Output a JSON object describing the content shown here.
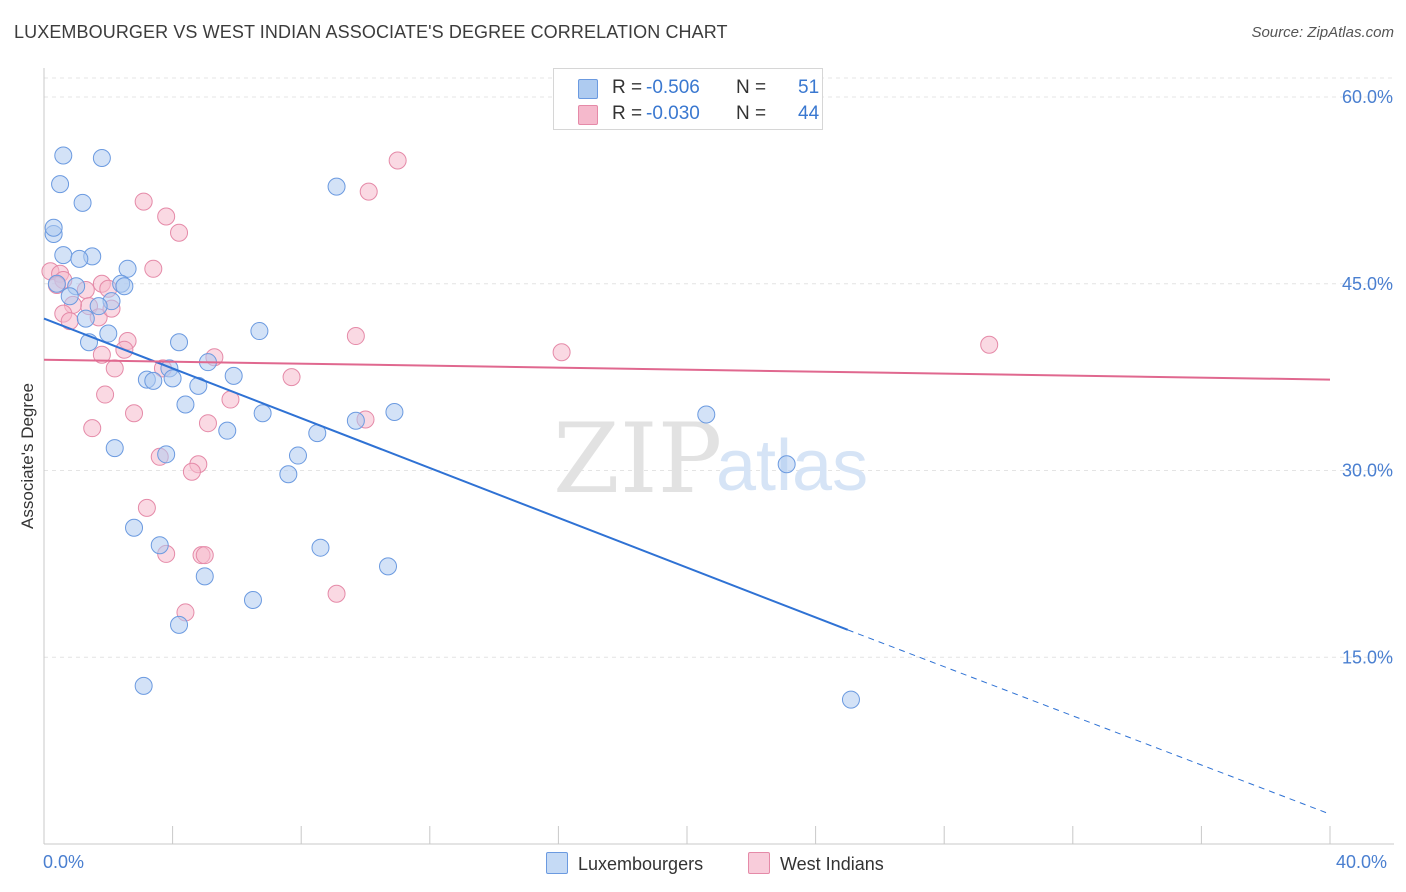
{
  "title": "LUXEMBOURGER VS WEST INDIAN ASSOCIATE'S DEGREE CORRELATION CHART",
  "source": "Source: ZipAtlas.com",
  "colors": {
    "blue_fill": "#aecbf0",
    "blue_stroke": "#6b9ae0",
    "blue_line": "#2f72d4",
    "pink_fill": "#f5b9cc",
    "pink_stroke": "#e58aa8",
    "pink_line": "#e0688f",
    "axis_text": "#4a7fd0",
    "grid": "#e4e4e4"
  },
  "legend": {
    "series1": {
      "r_label": "R =",
      "r_value": "-0.506",
      "n_label": "N =",
      "n_value": "51"
    },
    "series2": {
      "r_label": "R =",
      "r_value": "-0.030",
      "n_label": "N =",
      "n_value": "44"
    }
  },
  "bottom_legend": [
    "Luxembourgers",
    "West Indians"
  ],
  "x_axis_labels": {
    "min": "0.0%",
    "max": "40.0%"
  },
  "chart_data": {
    "type": "scatter",
    "title": "LUXEMBOURGER VS WEST INDIAN ASSOCIATE'S DEGREE CORRELATION CHART",
    "xlabel": "",
    "ylabel": "Associate's Degree",
    "xlim": [
      0,
      40
    ],
    "ylim": [
      0,
      62
    ],
    "y_ticks": [
      15,
      30,
      45,
      60
    ],
    "y_tick_labels": [
      "15.0%",
      "30.0%",
      "45.0%",
      "60.0%"
    ],
    "watermark": {
      "zip": "ZIP",
      "atlas": "atlas"
    },
    "series": [
      {
        "name": "Luxembourgers",
        "color": "#aecbf0",
        "points": [
          [
            0.3,
            49.0
          ],
          [
            0.5,
            53.0
          ],
          [
            0.3,
            49.5
          ],
          [
            0.6,
            55.3
          ],
          [
            1.8,
            55.1
          ],
          [
            1.2,
            51.5
          ],
          [
            0.6,
            47.3
          ],
          [
            1.5,
            47.2
          ],
          [
            2.6,
            46.2
          ],
          [
            2.4,
            45.0
          ],
          [
            2.5,
            44.8
          ],
          [
            1.0,
            44.8
          ],
          [
            0.8,
            44.0
          ],
          [
            2.1,
            43.6
          ],
          [
            1.7,
            43.2
          ],
          [
            1.3,
            42.2
          ],
          [
            2.0,
            41.0
          ],
          [
            6.7,
            41.2
          ],
          [
            1.4,
            40.3
          ],
          [
            4.2,
            40.3
          ],
          [
            5.1,
            38.7
          ],
          [
            3.9,
            38.2
          ],
          [
            5.9,
            37.6
          ],
          [
            3.2,
            37.3
          ],
          [
            3.4,
            37.2
          ],
          [
            4.0,
            37.4
          ],
          [
            4.8,
            36.8
          ],
          [
            4.4,
            35.3
          ],
          [
            6.8,
            34.6
          ],
          [
            10.9,
            34.7
          ],
          [
            9.7,
            34.0
          ],
          [
            5.7,
            33.2
          ],
          [
            8.5,
            33.0
          ],
          [
            2.2,
            31.8
          ],
          [
            3.8,
            31.3
          ],
          [
            7.9,
            31.2
          ],
          [
            7.6,
            29.7
          ],
          [
            2.8,
            25.4
          ],
          [
            3.6,
            24.0
          ],
          [
            8.6,
            23.8
          ],
          [
            10.7,
            22.3
          ],
          [
            5.0,
            21.5
          ],
          [
            6.5,
            19.6
          ],
          [
            4.2,
            17.6
          ],
          [
            3.1,
            12.7
          ],
          [
            25.1,
            11.6
          ],
          [
            20.6,
            34.5
          ],
          [
            23.1,
            30.5
          ],
          [
            9.1,
            52.8
          ],
          [
            1.1,
            47.0
          ],
          [
            0.4,
            45.0
          ]
        ]
      },
      {
        "name": "West Indians",
        "color": "#f5b9cc",
        "points": [
          [
            0.2,
            46.0
          ],
          [
            0.5,
            45.8
          ],
          [
            0.6,
            45.3
          ],
          [
            0.4,
            44.9
          ],
          [
            1.3,
            44.5
          ],
          [
            1.8,
            45.0
          ],
          [
            2.0,
            44.6
          ],
          [
            1.4,
            43.2
          ],
          [
            0.9,
            43.3
          ],
          [
            0.6,
            42.6
          ],
          [
            0.8,
            42.0
          ],
          [
            1.7,
            42.3
          ],
          [
            2.1,
            43.0
          ],
          [
            3.4,
            46.2
          ],
          [
            3.8,
            50.4
          ],
          [
            4.2,
            49.1
          ],
          [
            3.1,
            51.6
          ],
          [
            11.0,
            54.9
          ],
          [
            10.1,
            52.4
          ],
          [
            2.6,
            40.4
          ],
          [
            1.8,
            39.3
          ],
          [
            2.5,
            39.7
          ],
          [
            2.2,
            38.2
          ],
          [
            3.7,
            38.2
          ],
          [
            5.3,
            39.1
          ],
          [
            7.7,
            37.5
          ],
          [
            9.7,
            40.8
          ],
          [
            16.1,
            39.5
          ],
          [
            1.9,
            36.1
          ],
          [
            5.8,
            35.7
          ],
          [
            2.8,
            34.6
          ],
          [
            5.1,
            33.8
          ],
          [
            10.0,
            34.1
          ],
          [
            1.5,
            33.4
          ],
          [
            3.6,
            31.1
          ],
          [
            4.8,
            30.5
          ],
          [
            4.6,
            29.9
          ],
          [
            3.2,
            27.0
          ],
          [
            3.8,
            23.3
          ],
          [
            4.9,
            23.2
          ],
          [
            5.0,
            23.2
          ],
          [
            9.1,
            20.1
          ],
          [
            4.4,
            18.6
          ],
          [
            29.4,
            40.1
          ]
        ]
      }
    ],
    "trend_lines": [
      {
        "name": "Luxembourgers",
        "x_start": 0,
        "y_start": 42.2,
        "x_solid_end": 25.0,
        "y_solid_end": 17.2,
        "x_end": 40,
        "y_end": 2.4
      },
      {
        "name": "West Indians",
        "x_start": 0,
        "y_start": 38.9,
        "x_end": 40,
        "y_end": 37.3
      }
    ]
  }
}
